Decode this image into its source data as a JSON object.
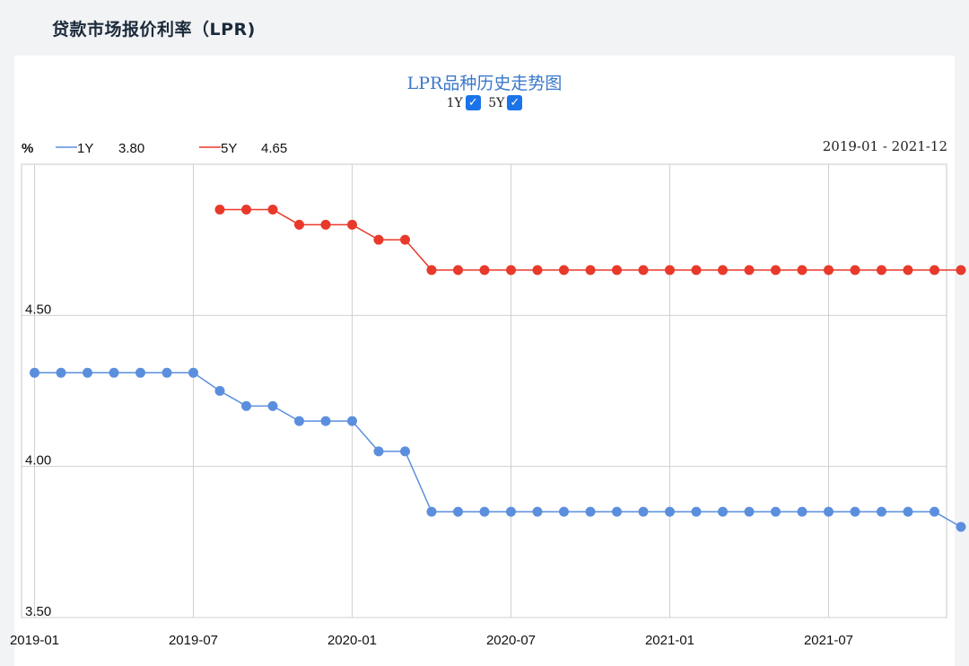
{
  "page": {
    "title": "贷款市场报价利率（LPR)"
  },
  "toggles": [
    {
      "label": "1Y",
      "checked": true
    },
    {
      "label": "5Y",
      "checked": true
    }
  ],
  "legend": {
    "unit": "%",
    "items": [
      {
        "name": "1Y",
        "value": "3.80",
        "color": "#5b8fdd"
      },
      {
        "name": "5Y",
        "value": "4.65",
        "color": "#e8392a"
      }
    ]
  },
  "range_label": "2019-01 - 2021-12",
  "chart_data": {
    "type": "line",
    "title": "LPR品种历史走势图",
    "xlabel": "",
    "ylabel": "%",
    "x_start": "2019-01",
    "x_ticks": [
      "2019-01",
      "2019-07",
      "2020-01",
      "2020-07",
      "2021-01",
      "2021-07"
    ],
    "y_ticks": [
      "3.50",
      "4.00",
      "4.50"
    ],
    "ylim": [
      3.5,
      5.0
    ],
    "grid": true,
    "series": [
      {
        "name": "1Y",
        "color": "#5b8fdd",
        "start": "2019-01",
        "values": [
          4.31,
          4.31,
          4.31,
          4.31,
          4.31,
          4.31,
          4.31,
          4.25,
          4.2,
          4.2,
          4.15,
          4.15,
          4.15,
          4.05,
          4.05,
          3.85,
          3.85,
          3.85,
          3.85,
          3.85,
          3.85,
          3.85,
          3.85,
          3.85,
          3.85,
          3.85,
          3.85,
          3.85,
          3.85,
          3.85,
          3.85,
          3.85,
          3.85,
          3.85,
          3.85,
          3.8
        ]
      },
      {
        "name": "5Y",
        "color": "#e8392a",
        "start": "2019-08",
        "values": [
          4.85,
          4.85,
          4.85,
          4.8,
          4.8,
          4.8,
          4.75,
          4.75,
          4.65,
          4.65,
          4.65,
          4.65,
          4.65,
          4.65,
          4.65,
          4.65,
          4.65,
          4.65,
          4.65,
          4.65,
          4.65,
          4.65,
          4.65,
          4.65,
          4.65,
          4.65,
          4.65,
          4.65,
          4.65
        ]
      }
    ]
  }
}
